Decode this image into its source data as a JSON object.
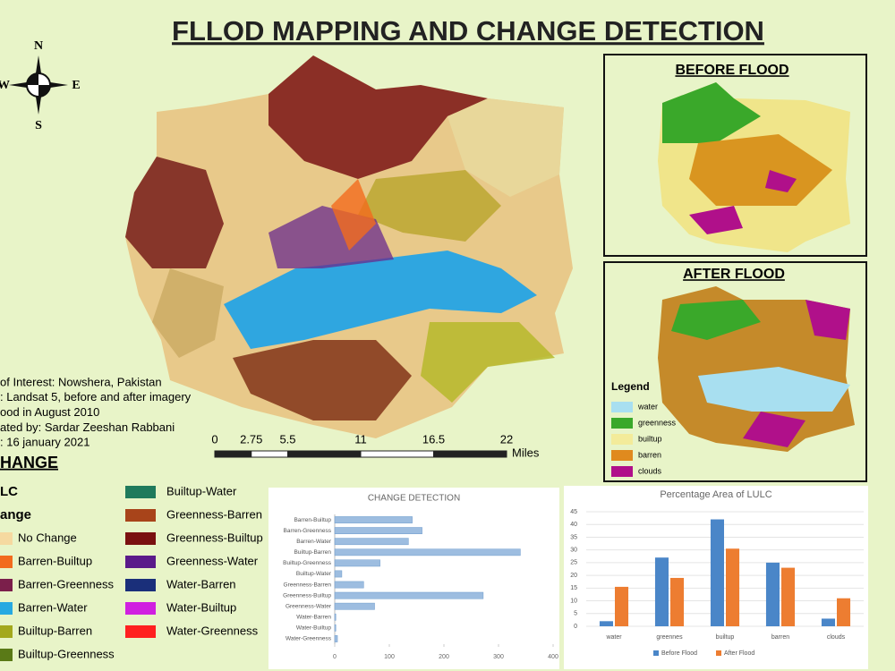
{
  "title": "FLLOD MAPPING AND CHANGE DETECTION",
  "compass": {
    "n": "N",
    "s": "S",
    "w": "W",
    "e": "E"
  },
  "info_lines": [
    "of Interest: Nowshera, Pakistan",
    ": Landsat 5, before and after imagery",
    "ood in August 2010",
    "ated by: Sardar Zeeshan Rabbani",
    ": 16 january 2021"
  ],
  "scale_bar": {
    "ticks": [
      0,
      2.75,
      5.5,
      11,
      16.5,
      22
    ],
    "unit": "Miles"
  },
  "before_flood": {
    "title": "BEFORE FLOOD"
  },
  "after_flood": {
    "title": "AFTER FLOOD",
    "legend": {
      "title": "Legend",
      "items": [
        {
          "label": "water",
          "color": "#a8dff0"
        },
        {
          "label": "greenness",
          "color": "#3aa82a"
        },
        {
          "label": "builtup",
          "color": "#f3eb9a"
        },
        {
          "label": "barren",
          "color": "#e08a1e"
        },
        {
          "label": "clouds",
          "color": "#b0108a"
        }
      ]
    }
  },
  "change_legend": {
    "heading": "HANGE",
    "subheading": "LC",
    "group": "ange",
    "items": [
      {
        "label": "No Change",
        "color": "#f5d9a0"
      },
      {
        "label": "Barren-Builtup",
        "color": "#f26b1d"
      },
      {
        "label": "Barren-Greenness",
        "color": "#7b1f4b"
      },
      {
        "label": "Barren-Water",
        "color": "#27a9e1"
      },
      {
        "label": "Builtup-Barren",
        "color": "#a3a81c"
      },
      {
        "label": "Builtup-Greenness",
        "color": "#5a7a17"
      },
      {
        "label": "Builtup-Water",
        "color": "#1f7a5c"
      },
      {
        "label": "Greenness-Barren",
        "color": "#a8441a"
      },
      {
        "label": "Greenness-Builtup",
        "color": "#7a1010"
      },
      {
        "label": "Greenness-Water",
        "color": "#5a1a8a"
      },
      {
        "label": "Water-Barren",
        "color": "#1a2f7a"
      },
      {
        "label": "Water-Builtup",
        "color": "#d020e0"
      },
      {
        "label": "Water-Greenness",
        "color": "#ff2020"
      }
    ]
  },
  "chart_data": [
    {
      "type": "bar",
      "orientation": "horizontal",
      "title": "CHANGE DETECTION",
      "categories": [
        "Barren-Builtup",
        "Barren-Greenness",
        "Barren-Water",
        "Builtup-Barren",
        "Builtup-Greenness",
        "Builtup-Water",
        "Greenness-Barren",
        "Greenness-Builtup",
        "Greenness-Water",
        "Water-Barren",
        "Water-Builtup",
        "Water-Greenness"
      ],
      "values": [
        142,
        160,
        135,
        340,
        83,
        13,
        53,
        272,
        73,
        2,
        2,
        5
      ],
      "color": "#9dbde0",
      "xlim": [
        0,
        400
      ],
      "xticks": [
        0,
        100,
        200,
        300,
        400
      ],
      "grid": false
    },
    {
      "type": "bar",
      "orientation": "vertical",
      "title": "Percentage Area of LULC",
      "categories": [
        "water",
        "greennes",
        "builtup",
        "barren",
        "clouds"
      ],
      "series": [
        {
          "name": "Before Flood",
          "color": "#4a86c8",
          "values": [
            2,
            27,
            42,
            25,
            3
          ]
        },
        {
          "name": "After Flood",
          "color": "#ed7d31",
          "values": [
            15.5,
            19,
            30.5,
            23,
            11
          ]
        }
      ],
      "ylim": [
        0,
        45
      ],
      "yticks": [
        0,
        5,
        10,
        15,
        20,
        25,
        30,
        35,
        40,
        45
      ],
      "grid": true,
      "legend": "bottom"
    }
  ]
}
